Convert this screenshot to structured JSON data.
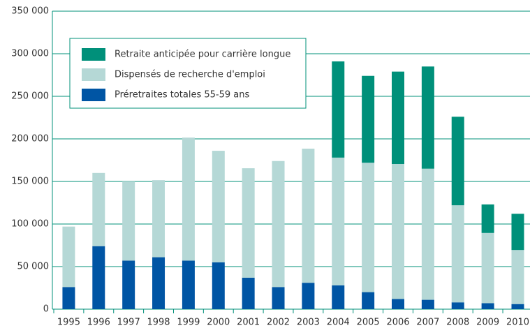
{
  "chart_data": {
    "type": "stacked_bar",
    "categories": [
      "1995",
      "1996",
      "1997",
      "1998",
      "1999",
      "2000",
      "2001",
      "2002",
      "2003",
      "2004",
      "2005",
      "2006",
      "2007",
      "2008",
      "2009",
      "2010"
    ],
    "series": [
      {
        "name": "Préretraites totales 55-59 ans",
        "color": "#0055a4",
        "values": [
          26000,
          74000,
          57000,
          61000,
          57000,
          55000,
          37000,
          26000,
          31000,
          28000,
          20000,
          12000,
          11000,
          8000,
          7000,
          6000
        ]
      },
      {
        "name": "Dispensés de recherche d'emploi",
        "color": "#b5d8d6",
        "values": [
          71000,
          86000,
          93000,
          90500,
          144500,
          131000,
          128500,
          148000,
          157500,
          150000,
          152000,
          158500,
          154000,
          114000,
          82500,
          63500
        ]
      },
      {
        "name": "Retraite anticipée pour carrière longue",
        "color": "#00907a",
        "values": [
          0,
          0,
          0,
          0,
          0,
          0,
          0,
          0,
          0,
          113000,
          102000,
          108500,
          120000,
          104000,
          33500,
          42500
        ]
      }
    ],
    "ylim": [
      0,
      350000
    ],
    "yticks": [
      0,
      {
        "value": 50000,
        "label": "50 000"
      },
      {
        "value": 100000,
        "label": "100 000"
      },
      {
        "value": 150000,
        "label": "150 000"
      },
      {
        "value": 200000,
        "label": "200 000"
      },
      {
        "value": 250000,
        "label": "250 000"
      },
      {
        "value": 300000,
        "label": "300 000"
      },
      {
        "value": 350000,
        "label": "350 000"
      }
    ],
    "grid": true,
    "legend": "upper left"
  }
}
